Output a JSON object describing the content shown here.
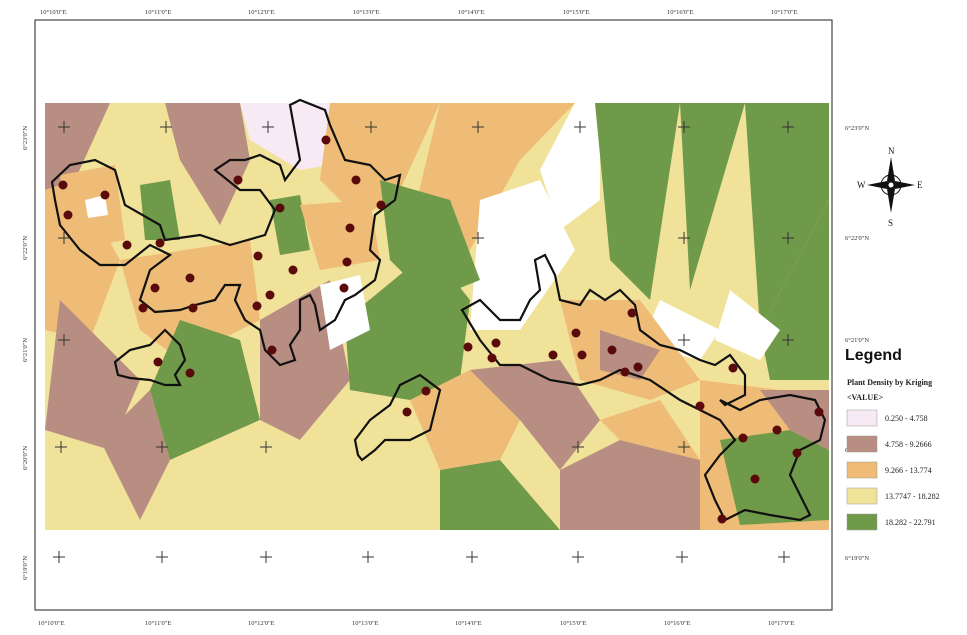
{
  "map": {
    "legend": {
      "title": "Legend",
      "subtitle": "Plant Density by Kriging",
      "field": "<VALUE>",
      "classes": [
        {
          "label": "0.250 - 4.758",
          "color": "#f7eaf4"
        },
        {
          "label": "4.758 - 9.2666",
          "color": "#b98e82"
        },
        {
          "label": "9.266 - 13.774",
          "color": "#eebc76"
        },
        {
          "label": "13.7747 - 18.282",
          "color": "#f1e29a"
        },
        {
          "label": "18.282 - 22.791",
          "color": "#6f9a49"
        }
      ]
    },
    "north_arrow": {
      "n": "N",
      "s": "S",
      "e": "E",
      "w": "W"
    },
    "colors": {
      "boundary": "#111111",
      "sample_point": "#5a0a0a",
      "blank": "#ffffff",
      "grid_cross": "#333333"
    },
    "coordinate_labels": {
      "top": [
        "10°10'0\"E",
        "10°11'0\"E",
        "10°12'0\"E",
        "10°13'0\"E",
        "10°14'0\"E",
        "10°15'0\"E",
        "10°16'0\"E",
        "10°17'0\"E"
      ],
      "bottom": [
        "10°10'0\"E",
        "10°11'0\"E",
        "10°12'0\"E",
        "10°13'0\"E",
        "10°14'0\"E",
        "10°15'0\"E",
        "10°16'0\"E",
        "10°17'0\"E"
      ],
      "left": [
        "6°23'0\"N",
        "6°22'0\"N",
        "6°21'0\"N",
        "6°20'0\"N",
        "6°19'0\"N"
      ],
      "right": [
        "6°23'0\"N",
        "6°22'0\"N",
        "6°21'0\"N",
        "6°20'0\"N",
        "6°19'0\"N"
      ]
    }
  }
}
